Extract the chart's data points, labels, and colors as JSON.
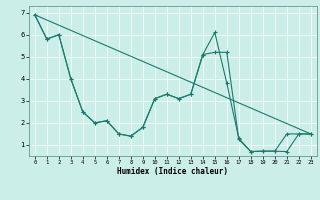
{
  "title": "",
  "xlabel": "Humidex (Indice chaleur)",
  "xlim": [
    -0.5,
    23.5
  ],
  "ylim": [
    0.5,
    7.3
  ],
  "background_color": "#cceee8",
  "line_color": "#1a7a6e",
  "grid_color": "#ffffff",
  "line1_x": [
    0,
    1,
    2,
    3,
    4,
    5,
    6,
    7,
    8,
    9,
    10,
    11,
    12,
    13,
    14,
    15,
    16,
    17,
    18,
    19,
    20,
    21,
    22,
    23
  ],
  "line1_y": [
    6.9,
    5.8,
    6.0,
    4.0,
    2.5,
    2.0,
    2.1,
    1.5,
    1.4,
    1.8,
    3.1,
    3.3,
    3.1,
    3.3,
    5.1,
    6.1,
    3.8,
    1.3,
    0.7,
    0.72,
    0.72,
    1.5,
    1.5,
    1.5
  ],
  "line2_x": [
    0,
    1,
    2,
    3,
    4,
    5,
    6,
    7,
    8,
    9,
    10,
    11,
    12,
    13,
    14,
    15,
    16,
    17,
    18,
    19,
    20,
    21,
    22,
    23
  ],
  "line2_y": [
    6.9,
    5.8,
    6.0,
    4.0,
    2.5,
    2.0,
    2.1,
    1.5,
    1.4,
    1.8,
    3.1,
    3.3,
    3.1,
    3.3,
    5.1,
    5.2,
    5.2,
    1.25,
    0.7,
    0.72,
    0.72,
    0.7,
    1.5,
    1.5
  ],
  "line3_x": [
    0,
    23
  ],
  "line3_y": [
    6.9,
    1.5
  ],
  "yticks": [
    1,
    2,
    3,
    4,
    5,
    6,
    7
  ],
  "xticks": [
    0,
    1,
    2,
    3,
    4,
    5,
    6,
    7,
    8,
    9,
    10,
    11,
    12,
    13,
    14,
    15,
    16,
    17,
    18,
    19,
    20,
    21,
    22,
    23
  ]
}
